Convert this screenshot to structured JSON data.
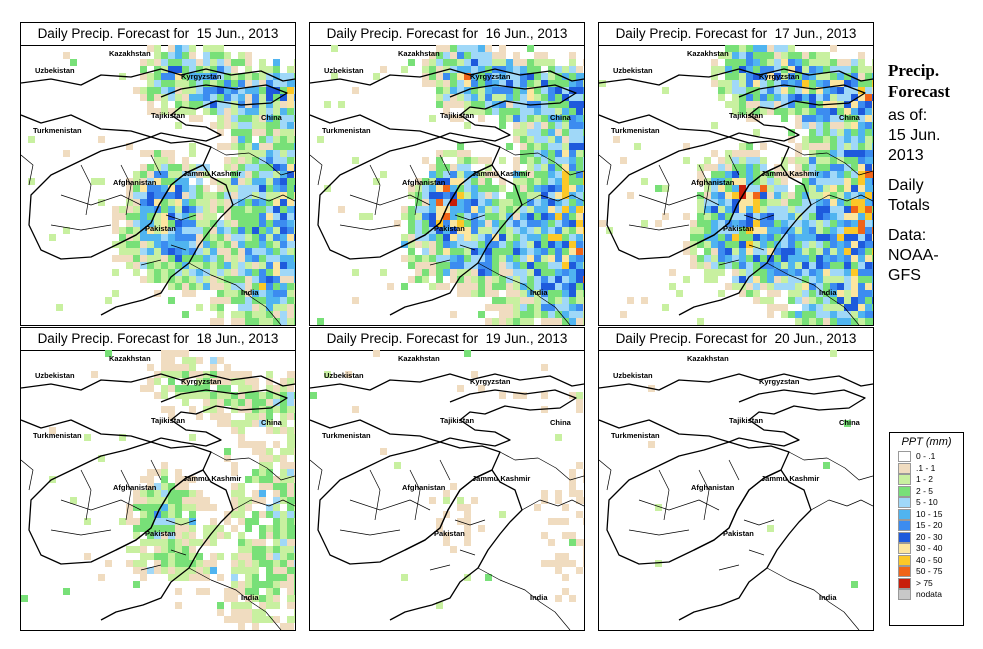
{
  "panels": [
    {
      "title": "Daily Precip. Forecast for  15 Jun., 2013",
      "intensity": 0.85
    },
    {
      "title": "Daily Precip. Forecast for  16 Jun., 2013",
      "intensity": 1.0
    },
    {
      "title": "Daily Precip. Forecast for  17 Jun., 2013",
      "intensity": 1.1
    },
    {
      "title": "Daily Precip. Forecast for  18 Jun., 2013",
      "intensity": 0.45
    },
    {
      "title": "Daily Precip. Forecast for  19 Jun., 2013",
      "intensity": 0.2
    },
    {
      "title": "Daily Precip. Forecast for  20 Jun., 2013",
      "intensity": 0.12
    }
  ],
  "labels": {
    "kazakhstan": "Kazakhstan",
    "uzbekistan": "Uzbekistan",
    "kyrgyzstan": "Kyrgyzstan",
    "tajikistan": "Tajikistan",
    "turkmenistan": "Turkmenistan",
    "china": "China",
    "jammu_kashmir": "Jammu Kashmir",
    "afghanistan": "Afghanistan",
    "pakistan": "Pakistan",
    "india": "India"
  },
  "side": {
    "title_line1": "Precip.",
    "title_line2": "Forecast",
    "asof_line1": "as of:",
    "asof_line2": "15 Jun.",
    "asof_line3": "2013",
    "daily_line1": "Daily",
    "daily_line2": "Totals",
    "data_line1": "Data:",
    "data_line2": "NOAA-",
    "data_line3": "GFS"
  },
  "legend": {
    "title": "PPT (mm)",
    "items": [
      {
        "label": "0 - .1",
        "color": "#ffffff"
      },
      {
        "label": ".1 - 1",
        "color": "#f0dcc0"
      },
      {
        "label": "1 - 2",
        "color": "#c8f0a0"
      },
      {
        "label": "2 - 5",
        "color": "#78e078"
      },
      {
        "label": "5 - 10",
        "color": "#a0d8f8"
      },
      {
        "label": "10 - 15",
        "color": "#50b4f0"
      },
      {
        "label": "15 - 20",
        "color": "#3c8cf0"
      },
      {
        "label": "20 - 30",
        "color": "#1e5adc"
      },
      {
        "label": "30 - 40",
        "color": "#fce6a0"
      },
      {
        "label": "40 - 50",
        "color": "#fcc828"
      },
      {
        "label": "50 - 75",
        "color": "#f06418"
      },
      {
        "label": "> 75",
        "color": "#c81e0a"
      },
      {
        "label": "nodata",
        "color": "#c8c8c8"
      }
    ]
  }
}
